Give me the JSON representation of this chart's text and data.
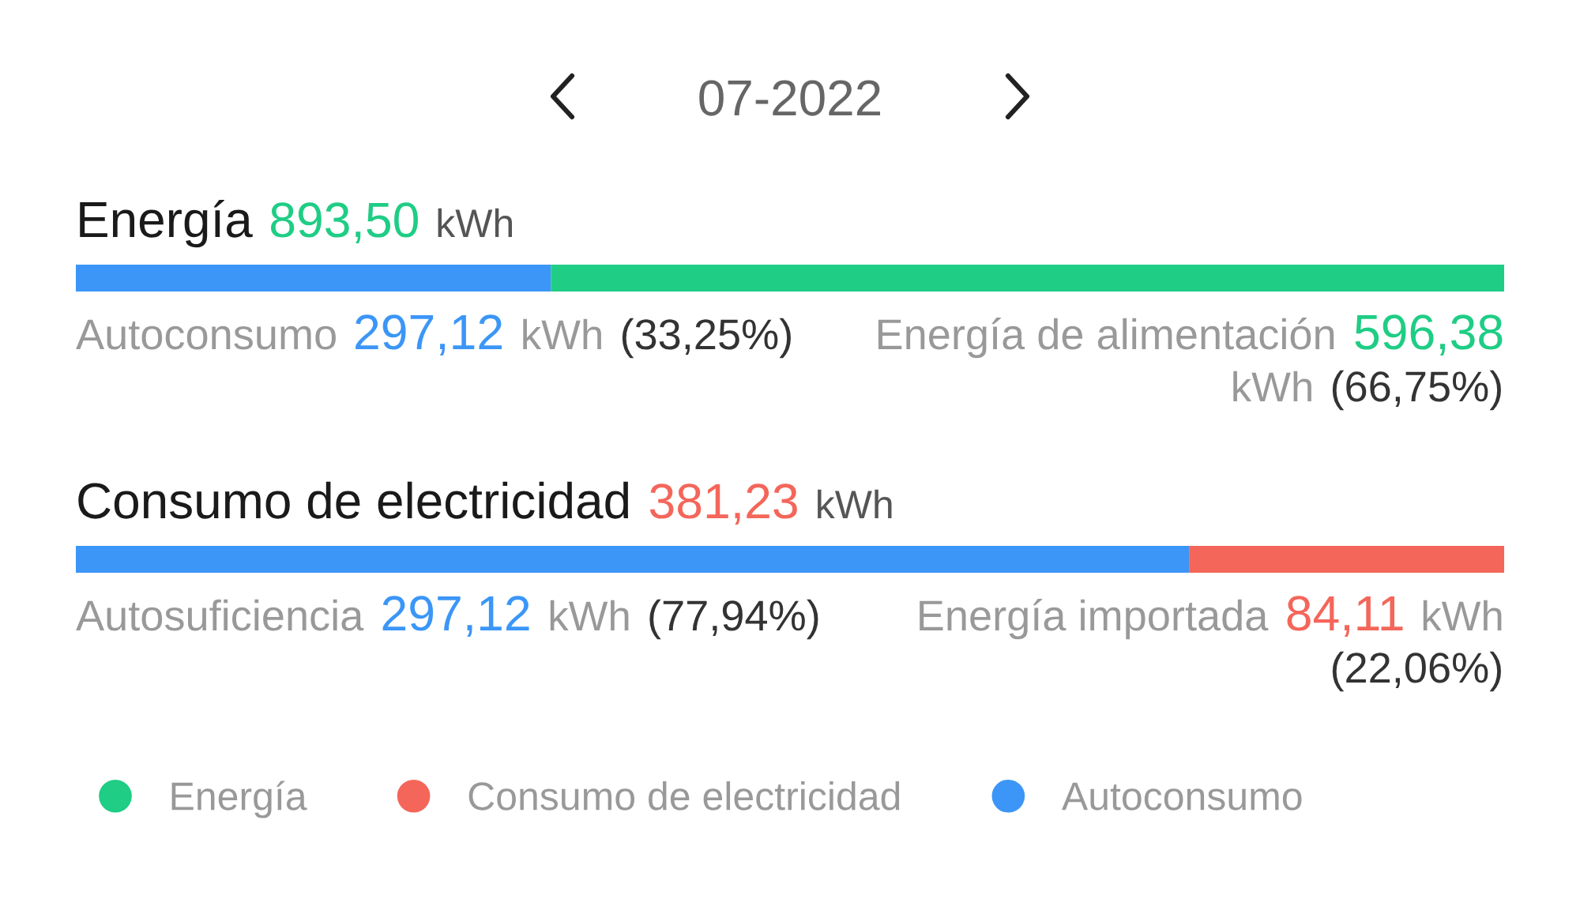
{
  "chart_data": [
    {
      "type": "bar",
      "orientation": "horizontal",
      "stacked": true,
      "title": "07-2022",
      "categories": [
        "Energía"
      ],
      "totals": [
        "893,50"
      ],
      "series": [
        {
          "name": "Autoconsumo",
          "color": "#3b96f7",
          "values": [
            297.12
          ],
          "value_labels": [
            "297,12"
          ]
        },
        {
          "name": "Energía",
          "color": "#1fcd85",
          "values": [
            596.38
          ],
          "value_labels": [
            "596,38"
          ]
        }
      ],
      "annotations": [
        "kWh",
        "Autoconsumo",
        "kWh",
        "(33,25%)",
        "Energía de alimentación",
        "kWh",
        "(66,75%)"
      ],
      "legend": "bottom left"
    },
    {
      "type": "bar",
      "orientation": "horizontal",
      "stacked": true,
      "categories": [
        "Consumo de electricidad"
      ],
      "totals": [
        "381,23"
      ],
      "series": [
        {
          "color": "#3b96f7",
          "values": [
            297.12
          ],
          "value_labels": [
            "297,12"
          ]
        },
        {
          "name": "Consumo de electricidad",
          "color": "#f4665a",
          "values": [
            84.11
          ],
          "value_labels": [
            "84,11"
          ]
        }
      ],
      "annotations": [
        "kWh",
        "Autosuficiencia",
        "kWh",
        "(77,94%)",
        "Energía importada",
        "kWh",
        "(22,06%)"
      ],
      "legend": "bottom left"
    }
  ]
}
